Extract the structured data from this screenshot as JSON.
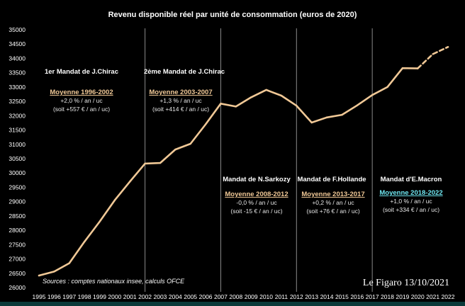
{
  "chart_data": {
    "type": "line",
    "title": "Revenu disponible réel par unité de consommation (euros de 2020)",
    "xlabel": "",
    "ylabel": "",
    "ylim": [
      26000,
      35000
    ],
    "yticks": [
      26000,
      26500,
      27000,
      27500,
      28000,
      28500,
      29000,
      29500,
      30000,
      30500,
      31000,
      31500,
      32000,
      32500,
      33000,
      33500,
      34000,
      34500,
      35000
    ],
    "x": [
      1995,
      1996,
      1997,
      1998,
      1999,
      2000,
      2001,
      2002,
      2003,
      2004,
      2005,
      2006,
      2007,
      2008,
      2009,
      2010,
      2011,
      2012,
      2013,
      2014,
      2015,
      2016,
      2017,
      2018,
      2019,
      2020,
      2021,
      2022
    ],
    "series": [
      {
        "name": "Revenu disponible réel / uc",
        "color": "#f0c896",
        "values": [
          26420,
          26560,
          26850,
          27600,
          28300,
          29050,
          29700,
          30330,
          30350,
          30820,
          31020,
          31700,
          32420,
          32320,
          32640,
          32900,
          32700,
          32350,
          31760,
          31940,
          32030,
          32360,
          32720,
          33000,
          33660,
          33650,
          34150,
          34400
        ],
        "dashed_from_index": 25
      }
    ],
    "separators": [
      2002,
      2007,
      2012,
      2017
    ],
    "annotations": [
      {
        "title": "1er Mandat de J.Chirac",
        "avg": "Moyenne 1996-2002",
        "rate": "+2,0 % / an / uc",
        "abs": "(soit +557 € / an / uc)",
        "avg_color": "#f0c896"
      },
      {
        "title": "2ème Mandat de J.Chirac",
        "avg": "Moyenne 2003-2007",
        "rate": "+1,3 % / an / uc",
        "abs": "(soit +414 € / an / uc)",
        "avg_color": "#f0c896"
      },
      {
        "title": "Mandat de N.Sarkozy",
        "avg": "Moyenne 2008-2012",
        "rate": "-0,0 % / an / uc",
        "abs": "(soit -15 € / an / uc)",
        "avg_color": "#f0c896"
      },
      {
        "title": "Mandat de F.Hollande",
        "avg": "Moyenne 2013-2017",
        "rate": "+0,2 % / an / uc",
        "abs": "(soit +76 € / an / uc)",
        "avg_color": "#f0c896"
      },
      {
        "title": "Mandat d'E.Macron",
        "avg": "Moyenne 2018-2022",
        "rate": "+1,0 % / an / uc",
        "abs": "(soit +334 € / an / uc)",
        "avg_color": "#6ee6f0"
      }
    ],
    "source": "Sources : comptes nationaux insee, calculs OFCE",
    "credit": "Le Figaro 13/10/2021",
    "colors": {
      "background": "#000000",
      "text": "#ffffff",
      "separator": "#8a8a8a",
      "axis": "#cfcfcf"
    }
  }
}
